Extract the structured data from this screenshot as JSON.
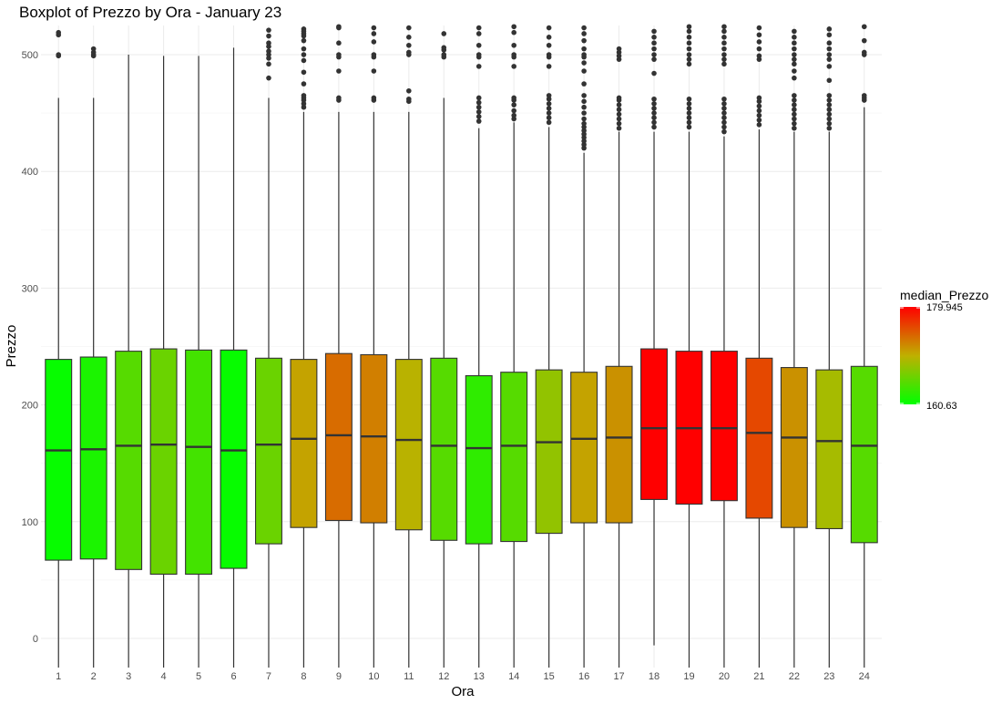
{
  "chart_data": {
    "type": "boxplot",
    "title": "Boxplot of Prezzo by Ora - January 23",
    "xlabel": "Ora",
    "ylabel": "Prezzo",
    "ylim": [
      -25,
      525
    ],
    "yticks": [
      0,
      100,
      200,
      300,
      400,
      500
    ],
    "grid": true,
    "legend": {
      "title": "median_Prezzo",
      "min": 160.63,
      "max": 179.945,
      "min_label": "160.63",
      "max_label": "179.945",
      "low_color": "#00ff00",
      "high_color": "#ff0000",
      "placement": "right"
    },
    "categories": [
      "1",
      "2",
      "3",
      "4",
      "5",
      "6",
      "7",
      "8",
      "9",
      "10",
      "11",
      "12",
      "13",
      "14",
      "15",
      "16",
      "17",
      "18",
      "19",
      "20",
      "21",
      "22",
      "23",
      "24"
    ],
    "boxes": [
      {
        "x": "1",
        "q1": 67,
        "median": 161,
        "q3": 239,
        "whisker_low": -25,
        "whisker_high": 463,
        "outliers": [
          499,
          500,
          517,
          519
        ]
      },
      {
        "x": "2",
        "q1": 68,
        "median": 162,
        "q3": 241,
        "whisker_low": -25,
        "whisker_high": 463,
        "outliers": [
          499,
          500,
          502,
          505
        ]
      },
      {
        "x": "3",
        "q1": 59,
        "median": 165,
        "q3": 246,
        "whisker_low": -25,
        "whisker_high": 500,
        "outliers": []
      },
      {
        "x": "4",
        "q1": 55,
        "median": 166,
        "q3": 248,
        "whisker_low": -25,
        "whisker_high": 499,
        "outliers": []
      },
      {
        "x": "5",
        "q1": 55,
        "median": 164,
        "q3": 247,
        "whisker_low": -25,
        "whisker_high": 499,
        "outliers": []
      },
      {
        "x": "6",
        "q1": 60,
        "median": 161,
        "q3": 247,
        "whisker_low": -25,
        "whisker_high": 506,
        "outliers": []
      },
      {
        "x": "7",
        "q1": 81,
        "median": 166,
        "q3": 240,
        "whisker_low": -25,
        "whisker_high": 463,
        "outliers": [
          480,
          492,
          497,
          500,
          503,
          507,
          510,
          516,
          521
        ]
      },
      {
        "x": "8",
        "q1": 95,
        "median": 171,
        "q3": 239,
        "whisker_low": -25,
        "whisker_high": 451,
        "outliers": [
          455,
          458,
          461,
          463,
          465,
          475,
          485,
          495,
          500,
          505,
          512,
          516,
          518,
          520,
          522
        ]
      },
      {
        "x": "9",
        "q1": 101,
        "median": 174,
        "q3": 244,
        "whisker_low": -25,
        "whisker_high": 451,
        "outliers": [
          461,
          463,
          486,
          498,
          500,
          510,
          523,
          524
        ]
      },
      {
        "x": "10",
        "q1": 99,
        "median": 173,
        "q3": 243,
        "whisker_low": -25,
        "whisker_high": 451,
        "outliers": [
          461,
          463,
          486,
          498,
          500,
          511,
          518,
          523
        ]
      },
      {
        "x": "11",
        "q1": 93,
        "median": 170,
        "q3": 239,
        "whisker_low": -25,
        "whisker_high": 451,
        "outliers": [
          460,
          462,
          469,
          500,
          502,
          508,
          515,
          523
        ]
      },
      {
        "x": "12",
        "q1": 84,
        "median": 165,
        "q3": 240,
        "whisker_low": -25,
        "whisker_high": 463,
        "outliers": [
          498,
          500,
          504,
          506,
          518
        ]
      },
      {
        "x": "13",
        "q1": 81,
        "median": 163,
        "q3": 225,
        "whisker_low": -25,
        "whisker_high": 437,
        "outliers": [
          443,
          447,
          451,
          455,
          459,
          463,
          490,
          498,
          500,
          508,
          518,
          523
        ]
      },
      {
        "x": "14",
        "q1": 83,
        "median": 165,
        "q3": 228,
        "whisker_low": -25,
        "whisker_high": 442,
        "outliers": [
          445,
          448,
          452,
          457,
          461,
          463,
          490,
          498,
          500,
          508,
          519,
          524
        ]
      },
      {
        "x": "15",
        "q1": 90,
        "median": 168,
        "q3": 230,
        "whisker_low": -25,
        "whisker_high": 438,
        "outliers": [
          442,
          446,
          450,
          454,
          458,
          462,
          465,
          490,
          498,
          500,
          508,
          515,
          523
        ]
      },
      {
        "x": "16",
        "q1": 99,
        "median": 171,
        "q3": 228,
        "whisker_low": -25,
        "whisker_high": 416,
        "outliers": [
          420,
          423,
          426,
          429,
          432,
          435,
          438,
          441,
          445,
          450,
          455,
          460,
          465,
          475,
          486,
          493,
          498,
          500,
          505,
          512,
          518,
          523
        ]
      },
      {
        "x": "17",
        "q1": 99,
        "median": 172,
        "q3": 233,
        "whisker_low": -25,
        "whisker_high": 434,
        "outliers": [
          437,
          441,
          445,
          449,
          453,
          457,
          461,
          463,
          496,
          499,
          502,
          505
        ]
      },
      {
        "x": "18",
        "q1": 119,
        "median": 180,
        "q3": 248,
        "whisker_low": -6,
        "whisker_high": 434,
        "outliers": [
          438,
          442,
          446,
          450,
          454,
          458,
          462,
          484,
          496,
          500,
          505,
          510,
          515,
          520
        ]
      },
      {
        "x": "19",
        "q1": 115,
        "median": 180,
        "q3": 246,
        "whisker_low": -25,
        "whisker_high": 434,
        "outliers": [
          438,
          442,
          446,
          450,
          454,
          458,
          462,
          492,
          496,
          500,
          505,
          510,
          515,
          520,
          524
        ]
      },
      {
        "x": "20",
        "q1": 118,
        "median": 180,
        "q3": 246,
        "whisker_low": -25,
        "whisker_high": 430,
        "outliers": [
          434,
          438,
          442,
          446,
          450,
          454,
          458,
          462,
          492,
          496,
          500,
          505,
          510,
          515,
          520,
          524
        ]
      },
      {
        "x": "21",
        "q1": 103,
        "median": 176,
        "q3": 240,
        "whisker_low": -25,
        "whisker_high": 436,
        "outliers": [
          440,
          444,
          448,
          452,
          456,
          460,
          463,
          496,
          499,
          505,
          511,
          517,
          523
        ]
      },
      {
        "x": "22",
        "q1": 95,
        "median": 172,
        "q3": 232,
        "whisker_low": -25,
        "whisker_high": 434,
        "outliers": [
          437,
          441,
          445,
          449,
          453,
          457,
          461,
          465,
          480,
          486,
          492,
          496,
          500,
          505,
          510,
          515,
          520
        ]
      },
      {
        "x": "23",
        "q1": 94,
        "median": 169,
        "q3": 230,
        "whisker_low": -25,
        "whisker_high": 434,
        "outliers": [
          437,
          441,
          445,
          449,
          453,
          457,
          461,
          465,
          478,
          490,
          496,
          500,
          505,
          510,
          517,
          522
        ]
      },
      {
        "x": "24",
        "q1": 82,
        "median": 165,
        "q3": 233,
        "whisker_low": -25,
        "whisker_high": 455,
        "outliers": [
          461,
          463,
          465,
          500,
          502,
          512,
          524
        ]
      }
    ]
  }
}
